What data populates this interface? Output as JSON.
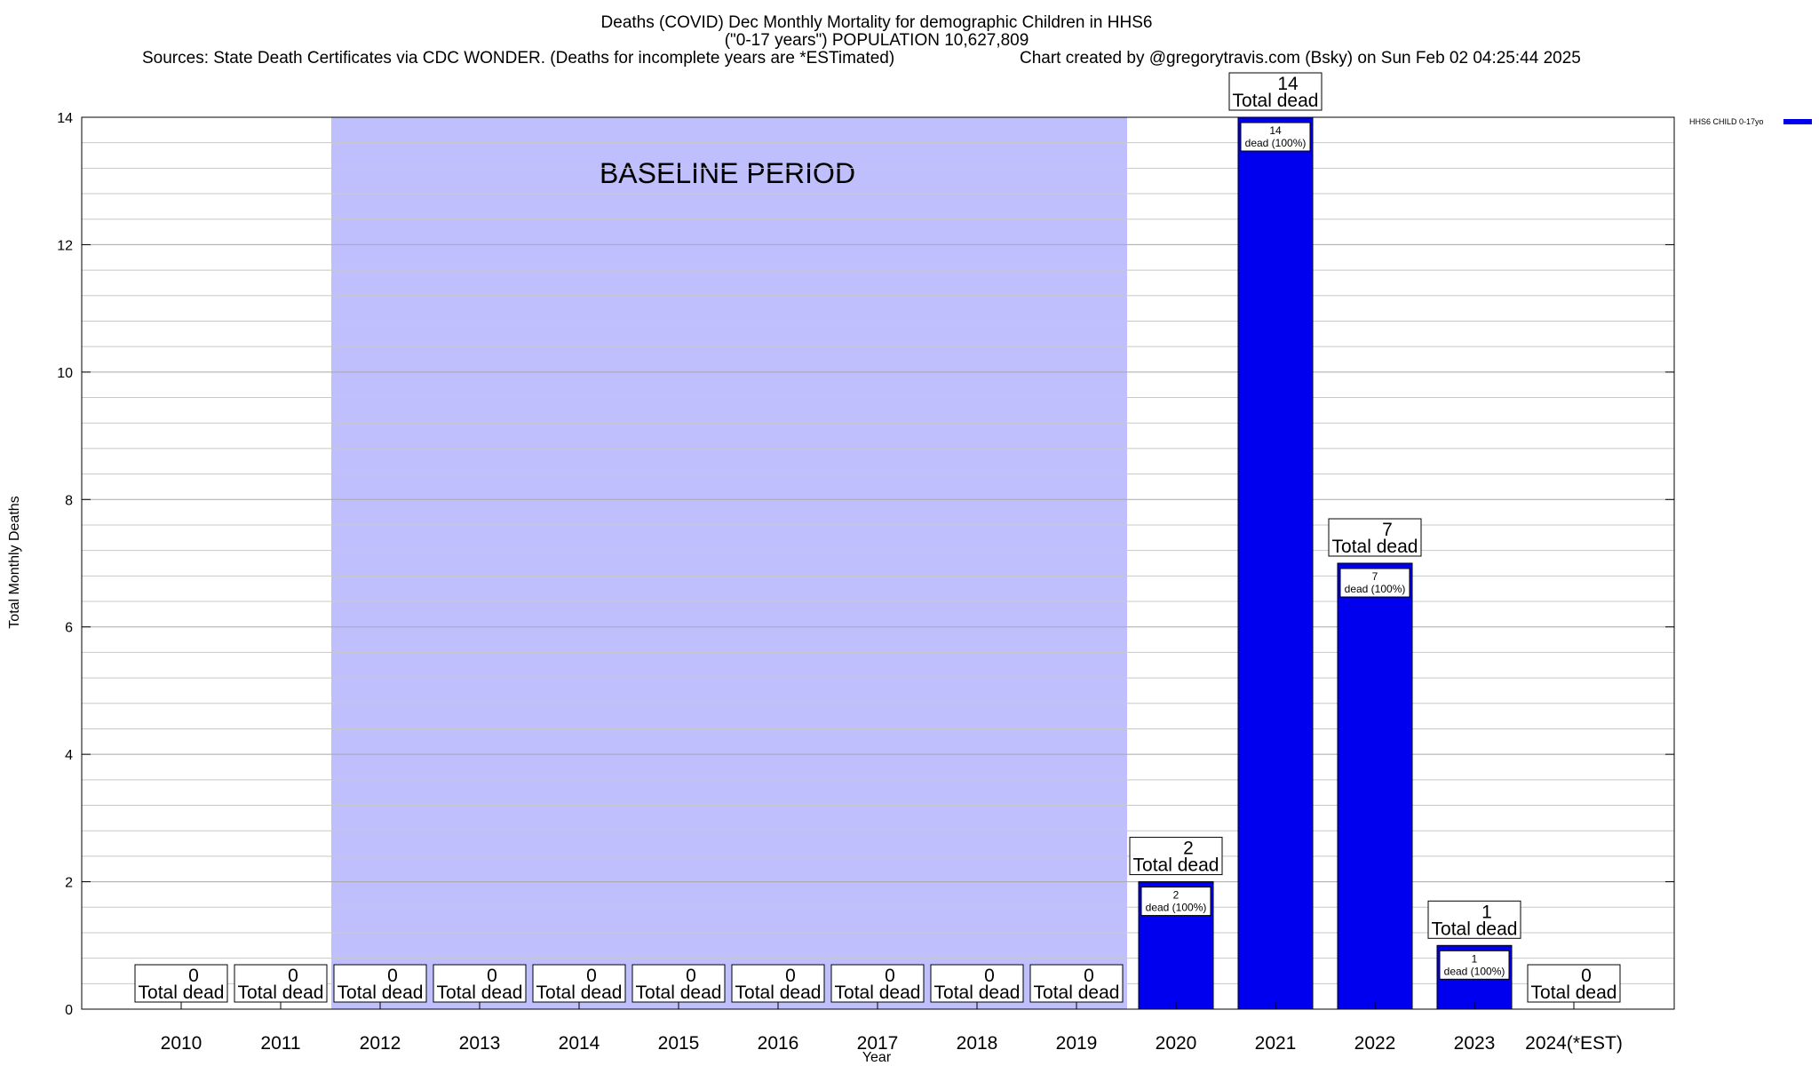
{
  "chart_data": {
    "type": "bar",
    "title": "Deaths (COVID) Dec Monthly Mortality for demographic Children in HHS6",
    "subtitle": "(\"0-17 years\") POPULATION 10,627,809",
    "source_note": "Sources: State Death Certificates via CDC WONDER. (Deaths for incomplete years are *ESTimated)",
    "credit": "Chart created by @gregorytravis.com (Bsky) on Sun Feb 02 04:25:44 2025",
    "xlabel": "Year",
    "ylabel": "Total Monthly Deaths",
    "ylim": [
      0,
      14
    ],
    "yticks": [
      0,
      2,
      4,
      6,
      8,
      10,
      12,
      14
    ],
    "grid": true,
    "categories": [
      "2010",
      "2011",
      "2012",
      "2013",
      "2014",
      "2015",
      "2016",
      "2017",
      "2018",
      "2019",
      "2020",
      "2021",
      "2022",
      "2023",
      "2024(*EST)"
    ],
    "series": [
      {
        "name": "HHS6 CHILD 0-17yo",
        "color": "#0000ee",
        "values": [
          0,
          0,
          0,
          0,
          0,
          0,
          0,
          0,
          0,
          0,
          2,
          14,
          7,
          1,
          0
        ]
      }
    ],
    "total_label": "Total dead",
    "inner_label_suffix": "dead (100%)",
    "baseline_period": {
      "label": "BASELINE PERIOD",
      "from": "2012",
      "to": "2019",
      "color": "#bfbffe"
    },
    "legend": {
      "placement": "top-right"
    }
  }
}
